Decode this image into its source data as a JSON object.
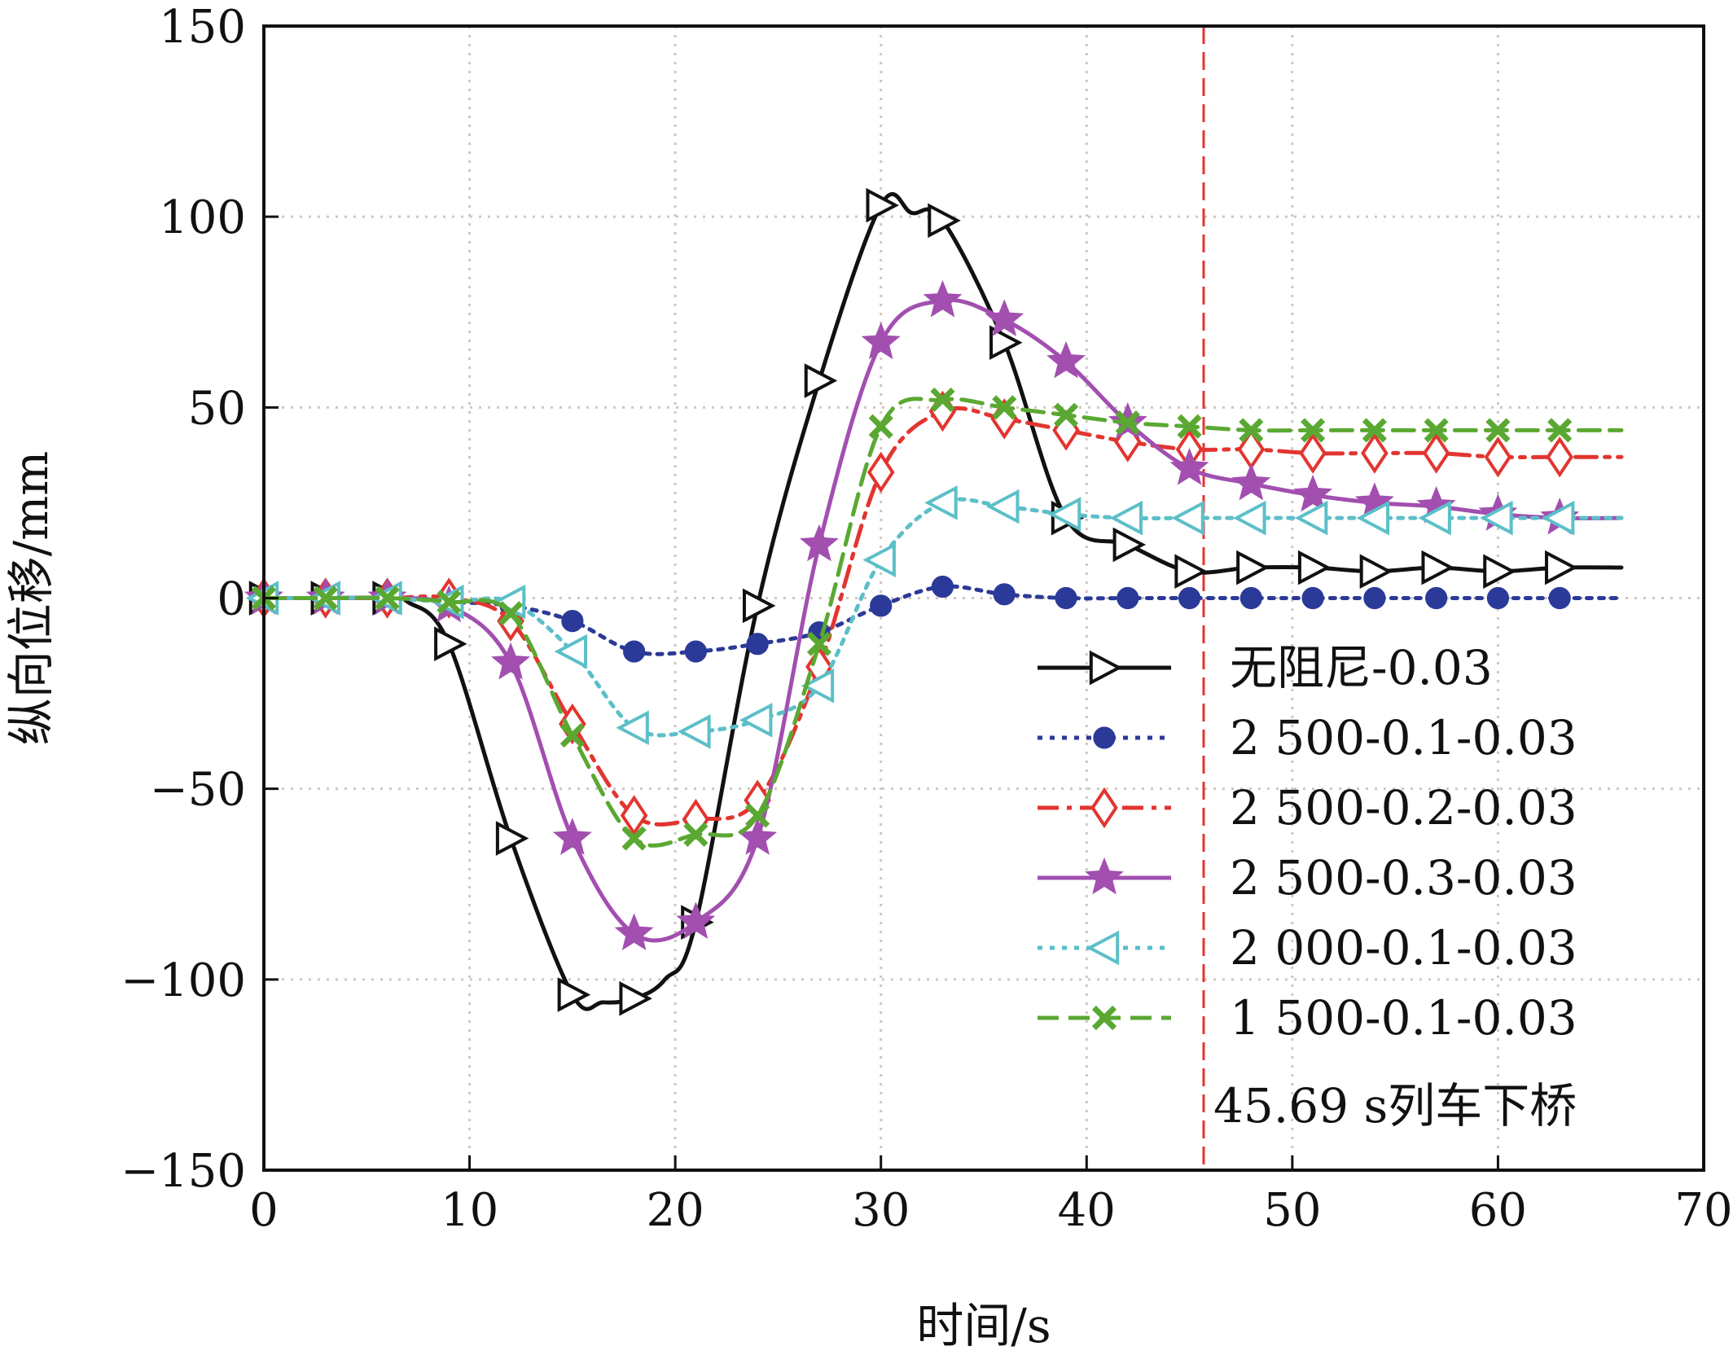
{
  "chart_data": {
    "type": "line",
    "title": "",
    "xlabel": "时间/s",
    "ylabel": "纵向位移/mm",
    "xlim": [
      0,
      70
    ],
    "ylim": [
      -150,
      150
    ],
    "xticks": [
      0,
      10,
      20,
      30,
      40,
      50,
      60,
      70
    ],
    "yticks": [
      -150,
      -100,
      -50,
      0,
      50,
      100,
      150
    ],
    "xtick_labels": [
      "0",
      "10",
      "20",
      "30",
      "40",
      "50",
      "60",
      "70"
    ],
    "ytick_labels": [
      "−150",
      "−100",
      "−50",
      "0",
      "50",
      "100",
      "150"
    ],
    "grid": true,
    "legend_position": "lower-right",
    "series": [
      {
        "name": "无阻尼-0.03",
        "color": "#111111",
        "dash": "solid",
        "marker": "triangle-right-open",
        "x": [
          0,
          3,
          6,
          7,
          9,
          12,
          15,
          16.5,
          18,
          19.5,
          21,
          24,
          27,
          30,
          31.5,
          33,
          36,
          39,
          42,
          45,
          48,
          51,
          54,
          57,
          60,
          63,
          66
        ],
        "y": [
          0,
          0,
          0,
          -1,
          -12,
          -63,
          -104,
          -106,
          -105,
          -100,
          -85,
          -2,
          57,
          103,
          101,
          99,
          67,
          21,
          14,
          7,
          8,
          8,
          7,
          8,
          7,
          8,
          8
        ],
        "marker_indices": [
          0,
          1,
          2,
          4,
          5,
          6,
          8,
          10,
          11,
          12,
          13,
          15,
          16,
          17,
          18,
          19,
          20,
          21,
          22,
          23,
          24,
          25
        ]
      },
      {
        "name": "2 500-0.1-0.03",
        "color": "#2b3a98",
        "dash": "dotted",
        "marker": "circle-filled",
        "x": [
          0,
          3,
          6,
          9,
          12,
          15,
          18,
          21,
          24,
          27,
          30,
          33,
          36,
          39,
          42,
          45,
          48,
          51,
          54,
          57,
          60,
          63,
          66
        ],
        "y": [
          0,
          0,
          0,
          -1,
          -2,
          -6,
          -14,
          -14,
          -12,
          -9,
          -2,
          3,
          1,
          0,
          0,
          0,
          0,
          0,
          0,
          0,
          0,
          0,
          0
        ],
        "marker_indices": [
          0,
          1,
          2,
          3,
          4,
          5,
          6,
          7,
          8,
          9,
          10,
          11,
          12,
          13,
          14,
          15,
          16,
          17,
          18,
          19,
          20,
          21
        ]
      },
      {
        "name": "2 500-0.2-0.03",
        "color": "#e23530",
        "dash": "dashdot",
        "marker": "diamond-open",
        "x": [
          0,
          3,
          6,
          9,
          12,
          15,
          18,
          21,
          24,
          27,
          30,
          33,
          36,
          39,
          42,
          45,
          48,
          51,
          54,
          57,
          60,
          63,
          66
        ],
        "y": [
          0,
          0,
          0,
          0,
          -6,
          -33,
          -57,
          -58,
          -53,
          -18,
          33,
          49,
          47,
          44,
          41,
          39,
          39,
          38,
          38,
          38,
          37,
          37,
          37
        ],
        "marker_indices": [
          0,
          1,
          2,
          3,
          4,
          5,
          6,
          7,
          8,
          9,
          10,
          11,
          12,
          13,
          14,
          15,
          16,
          17,
          18,
          19,
          20,
          21
        ]
      },
      {
        "name": "2 500-0.3-0.03",
        "color": "#a24fb0",
        "dash": "solid",
        "marker": "star-filled",
        "x": [
          0,
          3,
          6,
          9,
          12,
          15,
          18,
          21,
          24,
          27,
          30,
          33,
          36,
          39,
          42,
          45,
          48,
          51,
          54,
          57,
          60,
          63,
          66
        ],
        "y": [
          0,
          0,
          0,
          -2,
          -17,
          -63,
          -88,
          -85,
          -63,
          14,
          67,
          78,
          73,
          62,
          46,
          34,
          30,
          27,
          25,
          24,
          22,
          21,
          21
        ],
        "marker_indices": [
          0,
          1,
          2,
          3,
          4,
          5,
          6,
          7,
          8,
          9,
          10,
          11,
          12,
          13,
          14,
          15,
          16,
          17,
          18,
          19,
          20,
          21
        ]
      },
      {
        "name": "2 000-0.1-0.03",
        "color": "#5cbfc8",
        "dash": "dotted",
        "marker": "triangle-left-open",
        "x": [
          0,
          3,
          6,
          9,
          12,
          15,
          18,
          21,
          24,
          27,
          30,
          33,
          36,
          39,
          42,
          45,
          48,
          51,
          54,
          57,
          60,
          63,
          66
        ],
        "y": [
          0,
          0,
          0,
          -1,
          -1,
          -14,
          -34,
          -35,
          -32,
          -23,
          10,
          25,
          24,
          22,
          21,
          21,
          21,
          21,
          21,
          21,
          21,
          21,
          21
        ],
        "marker_indices": [
          0,
          1,
          2,
          3,
          4,
          5,
          6,
          7,
          8,
          9,
          10,
          11,
          12,
          13,
          14,
          15,
          16,
          17,
          18,
          19,
          20,
          21
        ]
      },
      {
        "name": "1 500-0.1-0.03",
        "color": "#5aa832",
        "dash": "dashed",
        "marker": "x-filled",
        "x": [
          0,
          3,
          6,
          9,
          12,
          15,
          18,
          21,
          24,
          27,
          30,
          33,
          36,
          39,
          42,
          45,
          48,
          51,
          54,
          57,
          60,
          63,
          66
        ],
        "y": [
          0,
          0,
          0,
          -1,
          -4,
          -36,
          -63,
          -62,
          -57,
          -12,
          45,
          52,
          50,
          48,
          46,
          45,
          44,
          44,
          44,
          44,
          44,
          44,
          44
        ],
        "marker_indices": [
          0,
          1,
          2,
          3,
          4,
          5,
          6,
          7,
          8,
          9,
          10,
          11,
          12,
          13,
          14,
          15,
          16,
          17,
          18,
          19,
          20,
          21
        ]
      }
    ],
    "annotations": [
      {
        "type": "vline",
        "x": 45.69,
        "color": "#e23530",
        "dash": "dashed",
        "text": "45.69 s列车下桥"
      }
    ]
  }
}
